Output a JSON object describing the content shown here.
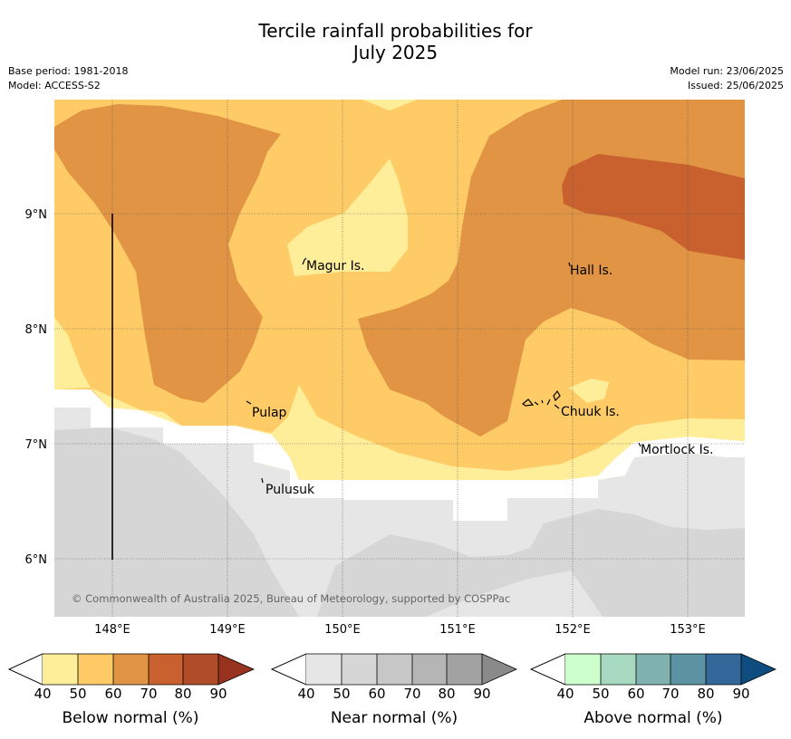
{
  "title_line1": "Tercile rainfall probabilities for",
  "title_line2": "July 2025",
  "base_period": "Base period: 1981-2018",
  "model": "Model: ACCESS-S2",
  "model_run": "Model run: 23/06/2025",
  "issued": "Issued: 25/06/2025",
  "copyright": "© Commonwealth of Australia 2025, Bureau of Meteorology, supported by COSPPac",
  "lat_ticks": [
    "9°N",
    "8°N",
    "7°N",
    "6°N"
  ],
  "lon_ticks": [
    "148°E",
    "149°E",
    "150°E",
    "151°E",
    "152°E",
    "153°E"
  ],
  "places": {
    "magur": "Magur Is.",
    "hall": "Hall Is.",
    "pulap": "Pulap",
    "chuuk": "Chuuk Is.",
    "mortlock": "Mortlock Is.",
    "pulusuk": "Pulusuk"
  },
  "legends": [
    {
      "label": "Below normal (%)",
      "ticks": [
        "40",
        "50",
        "60",
        "70",
        "80",
        "90"
      ],
      "colors": [
        "#ffee99",
        "#fecb66",
        "#e09444",
        "#c8612e",
        "#b04c27",
        "#96321e"
      ]
    },
    {
      "label": "Near normal (%)",
      "ticks": [
        "40",
        "50",
        "60",
        "70",
        "80",
        "90"
      ],
      "colors": [
        "#e6e6e6",
        "#d6d6d6",
        "#c7c7c7",
        "#b5b5b5",
        "#a2a2a2",
        "#8a8a8a"
      ]
    },
    {
      "label": "Above normal (%)",
      "ticks": [
        "40",
        "50",
        "60",
        "70",
        "80",
        "90"
      ],
      "colors": [
        "#ccffcc",
        "#a6d9bf",
        "#80b3b0",
        "#5c93a2",
        "#336699",
        "#0f4d80"
      ]
    }
  ]
}
